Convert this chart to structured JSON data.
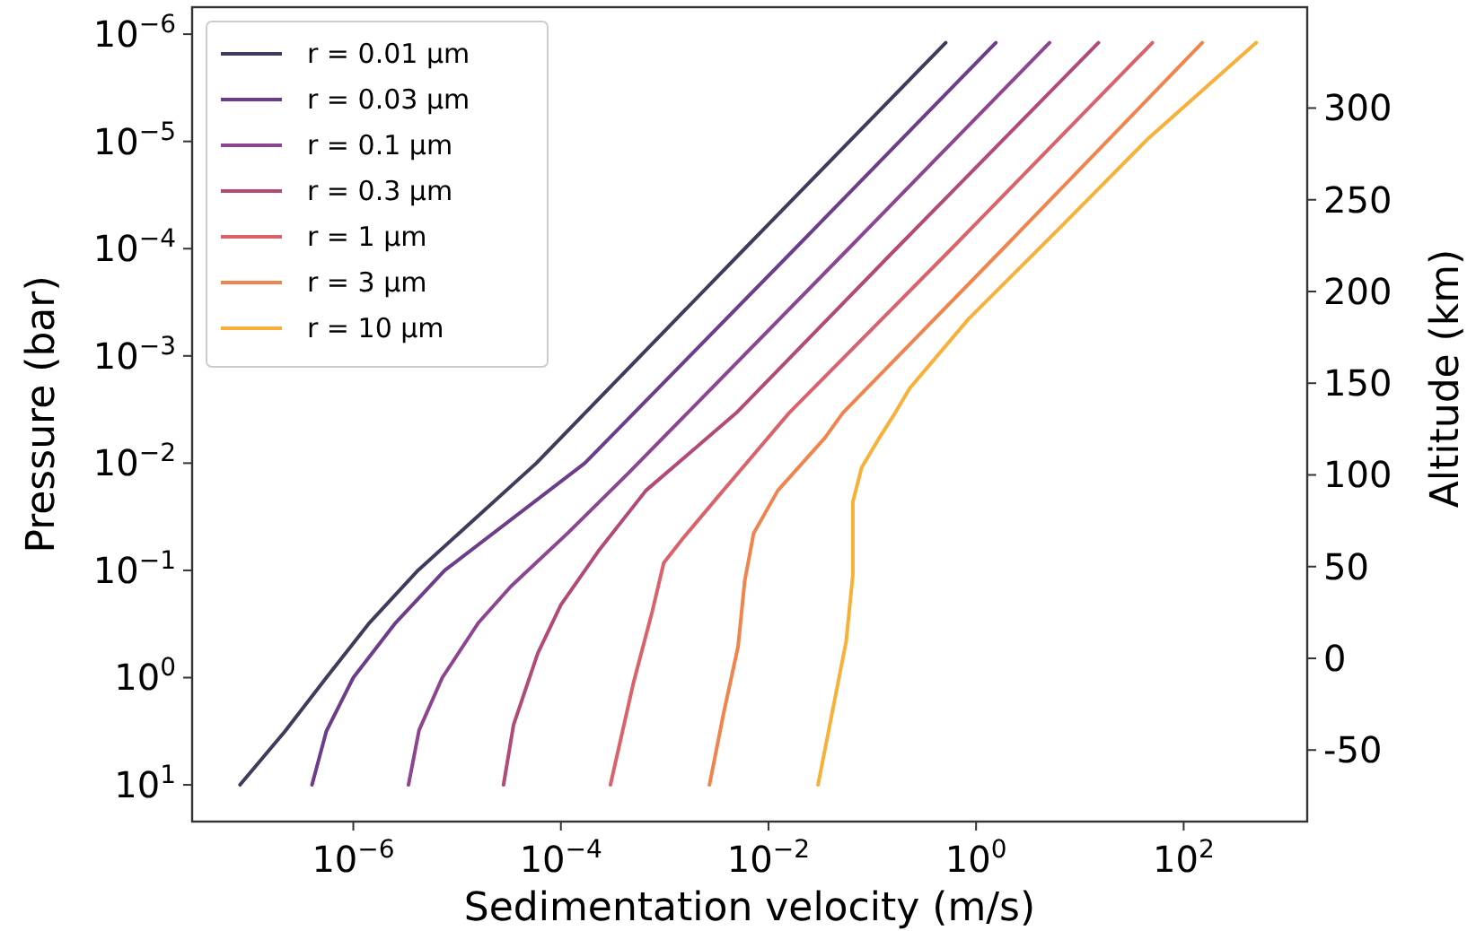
{
  "chart_data": {
    "type": "line",
    "xlabel": "Sedimentation velocity (m/s)",
    "ylabel": "Pressure (bar)",
    "y2label": "Altitude (km)",
    "log": "xy",
    "legend": "top left",
    "grid": false,
    "xlim": [
      2.8e-08,
      1550
    ],
    "ylim": [
      22,
      5.6e-07
    ],
    "y2lim": [
      -89,
      355
    ],
    "xticks": [
      {
        "value": 1e-06,
        "label": "10$^{−6}$"
      },
      {
        "value": 0.0001,
        "label": "10$^{−4}$"
      },
      {
        "value": 0.01,
        "label": "10$^{−2}$"
      },
      {
        "value": 1,
        "label": "10$^{0}$"
      },
      {
        "value": 100,
        "label": "10$^{2}$"
      }
    ],
    "yticks": [
      {
        "value": 1e-06,
        "label": "10$^{−6}$"
      },
      {
        "value": 1e-05,
        "label": "10$^{−5}$"
      },
      {
        "value": 0.0001,
        "label": "10$^{−4}$"
      },
      {
        "value": 0.001,
        "label": "10$^{−3}$"
      },
      {
        "value": 0.01,
        "label": "10$^{−2}$"
      },
      {
        "value": 0.1,
        "label": "10$^{−1}$"
      },
      {
        "value": 1,
        "label": "10$^{0}$"
      },
      {
        "value": 10,
        "label": "10$^{1}$"
      }
    ],
    "y2ticks": [
      300,
      250,
      200,
      150,
      100,
      50,
      0,
      {
        "value": -50,
        "label": "-50"
      }
    ],
    "series": [
      {
        "name": "r = 0.01 μm",
        "color": "#413a5b",
        "x": [
          0.51,
          0.0059,
          5.8e-05,
          4.2e-06,
          1.4e-06,
          5.5e-07,
          2.2e-07,
          8.1e-08
        ],
        "values": [
          1.2e-06,
          0.0001,
          0.01,
          0.1,
          0.316,
          1,
          3.16,
          10
        ]
      },
      {
        "name": "r = 0.03 μm",
        "color": "#6b3d8a",
        "x": [
          1.55,
          0.018,
          0.00017,
          7.6e-06,
          2.5e-06,
          1e-06,
          5.5e-07,
          4e-07
        ],
        "values": [
          1.2e-06,
          0.0001,
          0.01,
          0.1,
          0.316,
          1,
          3.16,
          10
        ]
      },
      {
        "name": "r = 0.1 μm",
        "color": "#8e4591",
        "x": [
          5.1,
          0.059,
          0.00166,
          0.00045,
          0.000117,
          3.3e-05,
          1.6e-05,
          7.2e-06,
          4.3e-06,
          3.4e-06
        ],
        "values": [
          1.2e-06,
          0.0001,
          0.0034,
          0.0123,
          0.0447,
          0.141,
          0.309,
          1,
          3.09,
          10
        ]
      },
      {
        "name": "r = 0.3 μm",
        "color": "#b24a78",
        "x": [
          15.1,
          0.17,
          0.0049,
          0.00066,
          0.00023,
          0.0001,
          6e-05,
          3.5e-05,
          2.8e-05
        ],
        "values": [
          1.2e-06,
          0.0001,
          0.0034,
          0.018,
          0.066,
          0.21,
          0.59,
          2.75,
          10
        ]
      },
      {
        "name": "r = 1 μm",
        "color": "#d9626b",
        "x": [
          50,
          0.58,
          0.0158,
          0.0032,
          0.00148,
          0.00098,
          0.00076,
          0.0005,
          0.0003
        ],
        "values": [
          1.2e-06,
          0.0001,
          0.0034,
          0.021,
          0.051,
          0.085,
          0.24,
          1.12,
          10
        ]
      },
      {
        "name": "r = 3 μm",
        "color": "#f0844e",
        "x": [
          151,
          1.82,
          0.052,
          0.035,
          0.0123,
          0.0072,
          0.0059,
          0.0051,
          0.0037,
          0.0027
        ],
        "values": [
          1.2e-06,
          0.0001,
          0.0034,
          0.0058,
          0.018,
          0.045,
          0.126,
          0.51,
          2.14,
          10
        ]
      },
      {
        "name": "r = 10 μm",
        "color": "#f8b038",
        "x": [
          500,
          46,
          6.3,
          0.85,
          0.23,
          0.166,
          0.117,
          0.079,
          0.065,
          0.065,
          0.056,
          0.03
        ],
        "values": [
          1.2e-06,
          9.3e-06,
          6.5e-05,
          0.00045,
          0.002,
          0.0034,
          0.0058,
          0.011,
          0.023,
          0.11,
          0.46,
          10
        ]
      }
    ]
  }
}
